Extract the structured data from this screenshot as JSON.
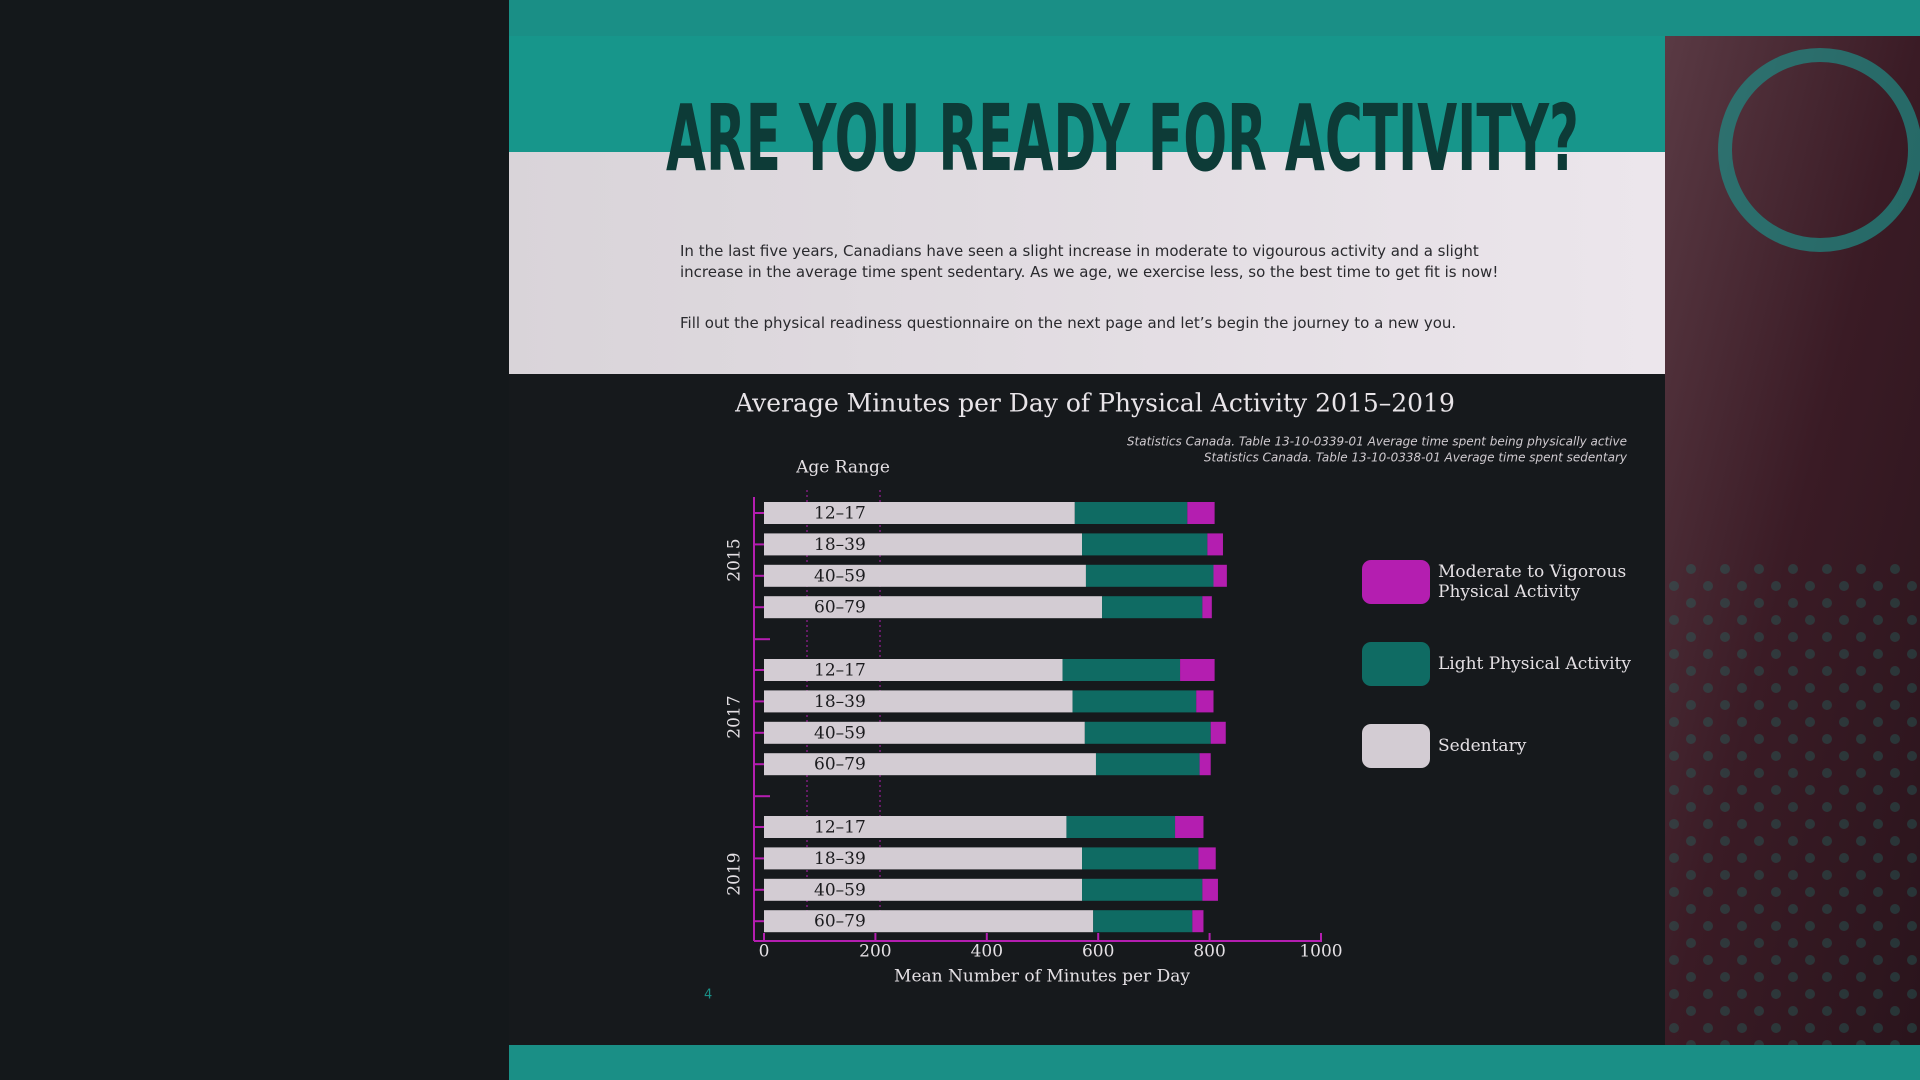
{
  "page": {
    "heading": "ARE YOU READY FOR ACTIVITY?",
    "paragraphs": [
      "In the last five years, Canadians have seen a slight increase in moderate to vigourous activity and a slight increase in the average time spent sedentary. As we age, we exercise less, so the best time to get fit is now!",
      "Fill out the physical readiness questionnaire on the next page and let’s begin the journey to a new you."
    ],
    "page_number": "4"
  },
  "chart_data": {
    "type": "stacked-barh",
    "title": "Average Minutes per Day of Physical Activity 2015–2019",
    "sources": [
      "Statistics Canada. Table 13-10-0339-01 Average time spent being physically active",
      "Statistics Canada. Table 13-10-0338-01 Average time spent sedentary"
    ],
    "category_header": "Age Range",
    "x_label": "Mean Number of Minutes per Day",
    "groups": [
      "2015",
      "2017",
      "2019"
    ],
    "categories": [
      "12–17",
      "18–39",
      "40–59",
      "60–79",
      "12–17",
      "18–39",
      "40–59",
      "60–79",
      "12–17",
      "18–39",
      "40–59",
      "60–79"
    ],
    "series": [
      {
        "name": "Sedentary",
        "color": "#d3ccd3",
        "values": [
          558,
          571,
          578,
          607,
          536,
          554,
          576,
          596,
          543,
          571,
          571,
          591
        ]
      },
      {
        "name": "Light Physical Activity",
        "color": "#0f6b63",
        "values": [
          202,
          225,
          229,
          180,
          211,
          222,
          226,
          186,
          195,
          209,
          216,
          178
        ]
      },
      {
        "name": "Moderate to Vigorous Physical Activity",
        "color": "#b41eb0",
        "values": [
          49,
          28,
          24,
          17,
          62,
          31,
          27,
          20,
          51,
          31,
          28,
          20
        ]
      }
    ],
    "legend_order": [
      2,
      1,
      0
    ],
    "xlim": [
      0,
      1000
    ],
    "xticks": [
      0,
      200,
      400,
      600,
      800,
      1000
    ],
    "grid": false
  }
}
